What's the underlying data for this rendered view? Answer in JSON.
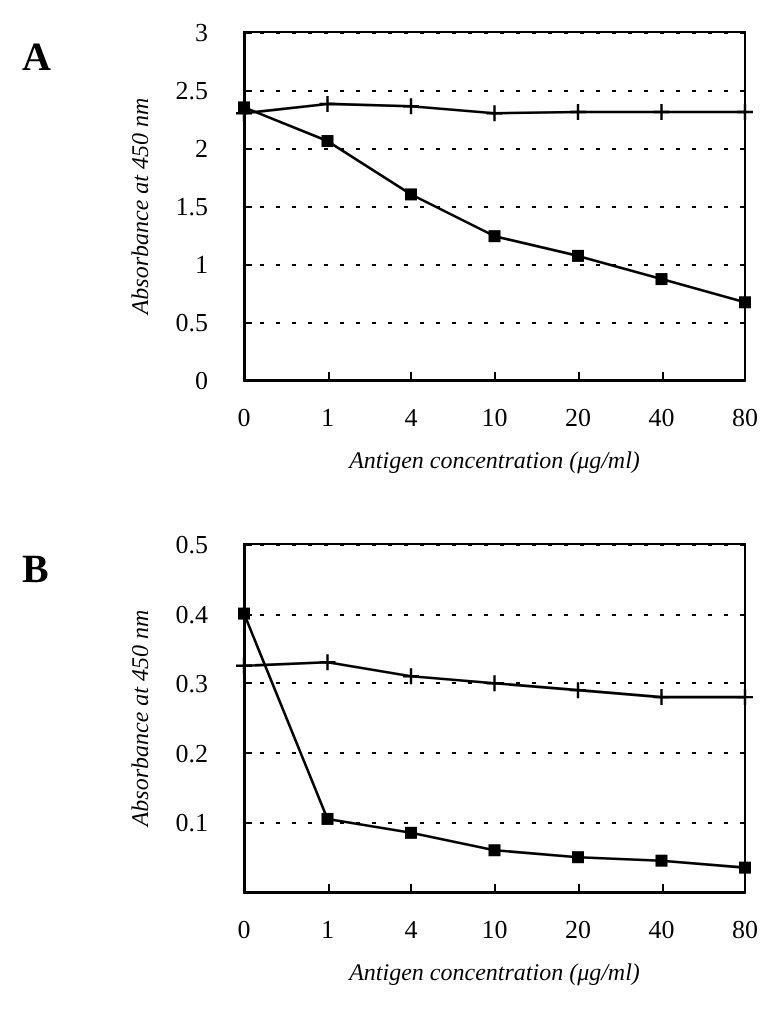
{
  "chart_data": [
    {
      "type": "line",
      "title": "A",
      "xlabel": "Antigen concentration (μg/ml)",
      "ylabel": "Absorbance at 450 nm",
      "categories": [
        "0",
        "1",
        "4",
        "10",
        "20",
        "40",
        "80"
      ],
      "ylim": [
        0,
        3
      ],
      "yticks": [
        0,
        0.5,
        1,
        1.5,
        2,
        2.5,
        3
      ],
      "grid": "y",
      "series": [
        {
          "color": "#000000",
          "marker": "cross",
          "values": [
            2.3,
            2.38,
            2.36,
            2.3,
            2.31,
            2.31,
            2.31
          ]
        },
        {
          "color": "#000000",
          "marker": "square",
          "values": [
            2.35,
            2.06,
            1.6,
            1.24,
            1.07,
            0.87,
            0.67
          ]
        }
      ]
    },
    {
      "type": "line",
      "title": "B",
      "xlabel": "Antigen concentration (μg/ml)",
      "ylabel": "Absorbance at 450 nm",
      "categories": [
        "0",
        "1",
        "4",
        "10",
        "20",
        "40",
        "80"
      ],
      "ylim": [
        0,
        0.5
      ],
      "yticks": [
        0.1,
        0.2,
        0.3,
        0.4,
        0.5
      ],
      "grid": "y",
      "series": [
        {
          "color": "#000000",
          "marker": "cross",
          "values": [
            0.325,
            0.33,
            0.31,
            0.3,
            0.29,
            0.28,
            0.28
          ]
        },
        {
          "color": "#000000",
          "marker": "square",
          "values": [
            0.4,
            0.105,
            0.085,
            0.06,
            0.05,
            0.045,
            0.035
          ]
        }
      ]
    }
  ]
}
